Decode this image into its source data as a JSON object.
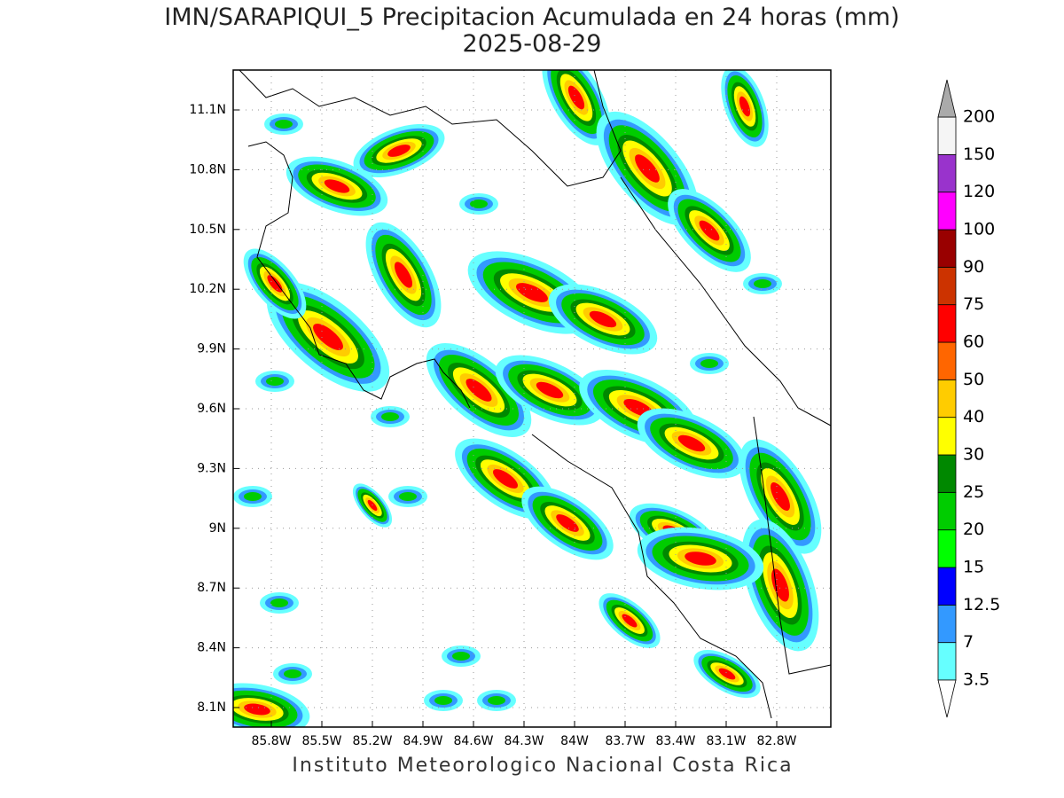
{
  "header": {
    "title": "IMN/SARAPIQUI_5 Precipitacion Acumulada en 24 horas (mm)",
    "subtitle": "2025-08-29"
  },
  "map": {
    "lat_labels": [
      "11.1N",
      "10.8N",
      "10.5N",
      "10.2N",
      "9.9N",
      "9.6N",
      "9.3N",
      "9N",
      "8.7N",
      "8.4N",
      "8.1N"
    ],
    "lon_labels": [
      "85.8W",
      "85.5W",
      "85.2W",
      "84.9W",
      "84.6W",
      "84.3W",
      "84W",
      "83.7W",
      "83.4W",
      "83.1W",
      "82.8W"
    ]
  },
  "colorbar": {
    "levels": [
      3.5,
      7,
      12.5,
      15,
      20,
      25,
      30,
      40,
      50,
      60,
      75,
      90,
      100,
      120,
      150,
      200
    ],
    "colors": [
      "#66ffff",
      "#3399ff",
      "#0000ff",
      "#00ff00",
      "#00cc00",
      "#008800",
      "#ffff00",
      "#ffcc00",
      "#ff6600",
      "#ff0000",
      "#cc3300",
      "#990000",
      "#ff00ff",
      "#9933cc",
      "#f5f5f5"
    ],
    "over_color": "#aaaaaa",
    "under_color": "#ffffff"
  },
  "footer": "Instituto Meteorologico Nacional Costa Rica"
}
